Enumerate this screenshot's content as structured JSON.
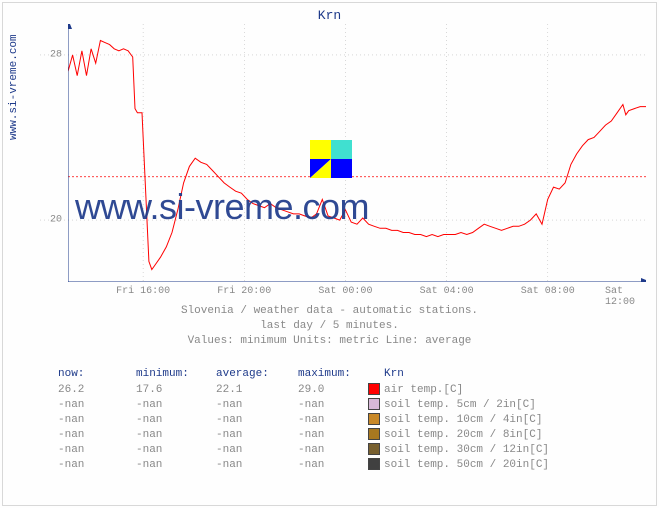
{
  "title": "Krn",
  "y_axis_label_outer": "www.si-vreme.com",
  "watermark_text": "www.si-vreme.com",
  "info_lines": [
    "Slovenia / weather data - automatic stations.",
    "last day / 5 minutes.",
    "Values: minimum  Units: metric  Line: average"
  ],
  "chart": {
    "ylim": [
      17,
      29.5
    ],
    "ytick_values": [
      20,
      28
    ],
    "ytick_labels": [
      "20",
      "28"
    ],
    "average_line_value": 22.1,
    "xtick_positions": [
      0.13,
      0.305,
      0.48,
      0.655,
      0.83,
      1.0
    ],
    "xtick_labels": [
      "Fri 16:00",
      "Fri 20:00",
      "Sat 00:00",
      "Sat 04:00",
      "Sat 08:00",
      "Sat 12:00"
    ],
    "axis_color": "#1e3a8a",
    "grid_color": "#c0c0c0",
    "line_color": "#ff0000",
    "series": [
      [
        0.0,
        27.2
      ],
      [
        0.008,
        28.0
      ],
      [
        0.016,
        27.0
      ],
      [
        0.024,
        28.2
      ],
      [
        0.032,
        27.0
      ],
      [
        0.04,
        28.3
      ],
      [
        0.048,
        27.6
      ],
      [
        0.056,
        28.7
      ],
      [
        0.064,
        28.6
      ],
      [
        0.072,
        28.5
      ],
      [
        0.08,
        28.3
      ],
      [
        0.088,
        28.2
      ],
      [
        0.096,
        28.3
      ],
      [
        0.104,
        28.2
      ],
      [
        0.112,
        27.9
      ],
      [
        0.116,
        25.4
      ],
      [
        0.12,
        25.2
      ],
      [
        0.124,
        25.2
      ],
      [
        0.128,
        25.2
      ],
      [
        0.14,
        18.0
      ],
      [
        0.145,
        17.6
      ],
      [
        0.15,
        17.8
      ],
      [
        0.16,
        18.2
      ],
      [
        0.17,
        18.7
      ],
      [
        0.18,
        19.4
      ],
      [
        0.19,
        20.5
      ],
      [
        0.2,
        21.8
      ],
      [
        0.21,
        22.6
      ],
      [
        0.22,
        23.0
      ],
      [
        0.23,
        22.8
      ],
      [
        0.24,
        22.7
      ],
      [
        0.25,
        22.4
      ],
      [
        0.26,
        22.1
      ],
      [
        0.27,
        21.8
      ],
      [
        0.28,
        21.6
      ],
      [
        0.29,
        21.4
      ],
      [
        0.3,
        21.3
      ],
      [
        0.31,
        21.0
      ],
      [
        0.32,
        20.8
      ],
      [
        0.33,
        20.7
      ],
      [
        0.34,
        20.6
      ],
      [
        0.35,
        20.8
      ],
      [
        0.36,
        20.6
      ],
      [
        0.37,
        20.5
      ],
      [
        0.38,
        20.4
      ],
      [
        0.39,
        20.3
      ],
      [
        0.4,
        20.3
      ],
      [
        0.41,
        20.2
      ],
      [
        0.42,
        20.1
      ],
      [
        0.43,
        20.3
      ],
      [
        0.44,
        21.0
      ],
      [
        0.45,
        20.2
      ],
      [
        0.46,
        20.1
      ],
      [
        0.47,
        20.0
      ],
      [
        0.48,
        20.5
      ],
      [
        0.49,
        19.9
      ],
      [
        0.5,
        19.8
      ],
      [
        0.51,
        20.1
      ],
      [
        0.52,
        19.8
      ],
      [
        0.53,
        19.7
      ],
      [
        0.54,
        19.6
      ],
      [
        0.55,
        19.6
      ],
      [
        0.56,
        19.5
      ],
      [
        0.57,
        19.5
      ],
      [
        0.58,
        19.4
      ],
      [
        0.59,
        19.4
      ],
      [
        0.6,
        19.3
      ],
      [
        0.61,
        19.3
      ],
      [
        0.62,
        19.2
      ],
      [
        0.63,
        19.3
      ],
      [
        0.64,
        19.2
      ],
      [
        0.65,
        19.3
      ],
      [
        0.66,
        19.3
      ],
      [
        0.67,
        19.3
      ],
      [
        0.68,
        19.4
      ],
      [
        0.69,
        19.3
      ],
      [
        0.7,
        19.4
      ],
      [
        0.71,
        19.6
      ],
      [
        0.72,
        19.8
      ],
      [
        0.73,
        19.7
      ],
      [
        0.74,
        19.6
      ],
      [
        0.75,
        19.5
      ],
      [
        0.76,
        19.6
      ],
      [
        0.77,
        19.7
      ],
      [
        0.78,
        19.7
      ],
      [
        0.79,
        19.8
      ],
      [
        0.8,
        20.0
      ],
      [
        0.81,
        20.3
      ],
      [
        0.82,
        19.8
      ],
      [
        0.83,
        21.0
      ],
      [
        0.84,
        21.6
      ],
      [
        0.85,
        21.5
      ],
      [
        0.86,
        21.8
      ],
      [
        0.87,
        22.7
      ],
      [
        0.88,
        23.2
      ],
      [
        0.89,
        23.6
      ],
      [
        0.9,
        23.9
      ],
      [
        0.91,
        24.0
      ],
      [
        0.92,
        24.3
      ],
      [
        0.93,
        24.6
      ],
      [
        0.94,
        24.8
      ],
      [
        0.95,
        25.2
      ],
      [
        0.96,
        25.6
      ],
      [
        0.965,
        25.1
      ],
      [
        0.97,
        25.3
      ],
      [
        0.98,
        25.4
      ],
      [
        0.99,
        25.5
      ],
      [
        1.0,
        25.5
      ]
    ]
  },
  "table": {
    "headers": [
      "now:",
      "minimum:",
      "average:",
      "maximum:"
    ],
    "legend_title": "Krn",
    "rows": [
      {
        "now": "26.2",
        "min": "17.6",
        "avg": "22.1",
        "max": "29.0",
        "color": "#ff0000",
        "label": "air temp.[C]"
      },
      {
        "now": "-nan",
        "min": "-nan",
        "avg": "-nan",
        "max": "-nan",
        "color": "#d8b8d8",
        "label": "soil temp. 5cm / 2in[C]"
      },
      {
        "now": "-nan",
        "min": "-nan",
        "avg": "-nan",
        "max": "-nan",
        "color": "#c88828",
        "label": "soil temp. 10cm / 4in[C]"
      },
      {
        "now": "-nan",
        "min": "-nan",
        "avg": "-nan",
        "max": "-nan",
        "color": "#a87820",
        "label": "soil temp. 20cm / 8in[C]"
      },
      {
        "now": "-nan",
        "min": "-nan",
        "avg": "-nan",
        "max": "-nan",
        "color": "#786030",
        "label": "soil temp. 30cm / 12in[C]"
      },
      {
        "now": "-nan",
        "min": "-nan",
        "avg": "-nan",
        "max": "-nan",
        "color": "#404040",
        "label": "soil temp. 50cm / 20in[C]"
      }
    ]
  }
}
